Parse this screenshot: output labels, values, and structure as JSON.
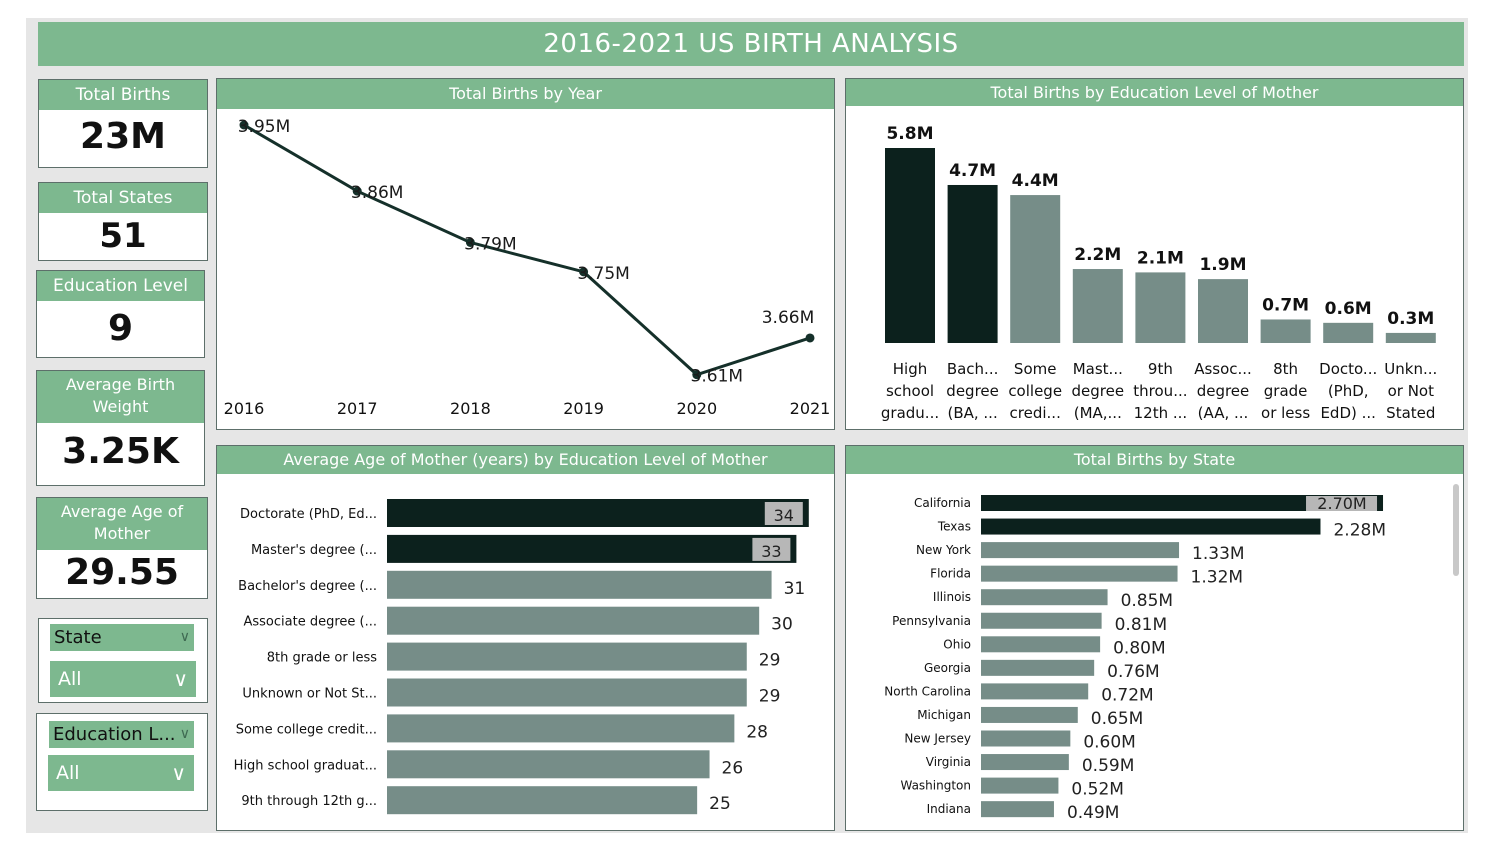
{
  "title": "2016-2021 US BIRTH ANALYSIS",
  "colors": {
    "header": "#7db88f",
    "dark": "#0c211d",
    "medium": "#768d88",
    "line": "#15302a",
    "canvas": "#e6e6e6"
  },
  "kpis": [
    {
      "label": "Total Births",
      "value": "23M"
    },
    {
      "label": "Total States",
      "value": "51"
    },
    {
      "label": "Education Level",
      "value": "9"
    },
    {
      "label": "Average Birth Weight",
      "value": "3.25K"
    },
    {
      "label": "Average Age of Mother",
      "value": "29.55"
    }
  ],
  "slicers": [
    {
      "label": "State",
      "value": "All"
    },
    {
      "label": "Education L...",
      "value": "All"
    }
  ],
  "panels": {
    "year": "Total Births by Year",
    "edu": "Total Births by Education Level of Mother",
    "age": "Average Age of Mother (years) by Education Level of Mother",
    "state": "Total Births by State"
  },
  "chart_data": [
    {
      "type": "line",
      "title": "Total Births by Year",
      "x": [
        "2016",
        "2017",
        "2018",
        "2019",
        "2020",
        "2021"
      ],
      "values": [
        3.95,
        3.86,
        3.79,
        3.75,
        3.61,
        3.66
      ],
      "labels": [
        "3.95M",
        "3.86M",
        "3.79M",
        "3.75M",
        "3.61M",
        "3.66M"
      ],
      "ylim": [
        3.6,
        3.95
      ]
    },
    {
      "type": "bar",
      "title": "Total Births by Education Level of Mother",
      "categories": [
        [
          "High",
          "school",
          "gradu..."
        ],
        [
          "Bach...",
          "degree",
          "(BA, ..."
        ],
        [
          "Some",
          "college",
          "credi..."
        ],
        [
          "Mast...",
          "degree",
          "(MA,..."
        ],
        [
          "9th",
          "throu...",
          "12th ..."
        ],
        [
          "Assoc...",
          "degree",
          "(AA, ..."
        ],
        [
          "8th",
          "grade",
          "or less"
        ],
        [
          "Docto...",
          "(PhD,",
          "EdD) ..."
        ],
        [
          "Unkn...",
          "or Not",
          "Stated"
        ]
      ],
      "values": [
        5.8,
        4.7,
        4.4,
        2.2,
        2.1,
        1.9,
        0.7,
        0.6,
        0.3
      ],
      "labels": [
        "5.8M",
        "4.7M",
        "4.4M",
        "2.2M",
        "2.1M",
        "1.9M",
        "0.7M",
        "0.6M",
        "0.3M"
      ],
      "highlight": [
        true,
        true,
        false,
        false,
        false,
        false,
        false,
        false,
        false
      ]
    },
    {
      "type": "bar",
      "title": "Average Age of Mother (years) by Education Level of Mother",
      "orientation": "horizontal",
      "categories": [
        "Doctorate (PhD, Ed...",
        "Master's degree (...",
        "Bachelor's degree (...",
        "Associate degree (...",
        "8th grade or less",
        "Unknown or Not St...",
        "Some college credit...",
        "High school graduat...",
        "9th through 12th g..."
      ],
      "values": [
        34,
        33,
        31,
        30,
        29,
        29,
        28,
        26,
        25
      ],
      "labels": [
        "34",
        "33",
        "31",
        "30",
        "29",
        "29",
        "28",
        "26",
        "25"
      ],
      "highlight": [
        true,
        true,
        false,
        false,
        false,
        false,
        false,
        false,
        false
      ],
      "xlim": [
        0,
        34.5
      ]
    },
    {
      "type": "bar",
      "title": "Total Births by State",
      "orientation": "horizontal",
      "categories": [
        "California",
        "Texas",
        "New York",
        "Florida",
        "Illinois",
        "Pennsylvania",
        "Ohio",
        "Georgia",
        "North Carolina",
        "Michigan",
        "New Jersey",
        "Virginia",
        "Washington",
        "Indiana"
      ],
      "values": [
        2.7,
        2.28,
        1.33,
        1.32,
        0.85,
        0.81,
        0.8,
        0.76,
        0.72,
        0.65,
        0.6,
        0.59,
        0.52,
        0.49
      ],
      "labels": [
        "2.70M",
        "2.28M",
        "1.33M",
        "1.32M",
        "0.85M",
        "0.81M",
        "0.80M",
        "0.76M",
        "0.72M",
        "0.65M",
        "0.60M",
        "0.59M",
        "0.52M",
        "0.49M"
      ],
      "highlight": [
        true,
        true,
        false,
        false,
        false,
        false,
        false,
        false,
        false,
        false,
        false,
        false,
        false,
        false
      ],
      "xlim": [
        0,
        2.72
      ]
    }
  ]
}
